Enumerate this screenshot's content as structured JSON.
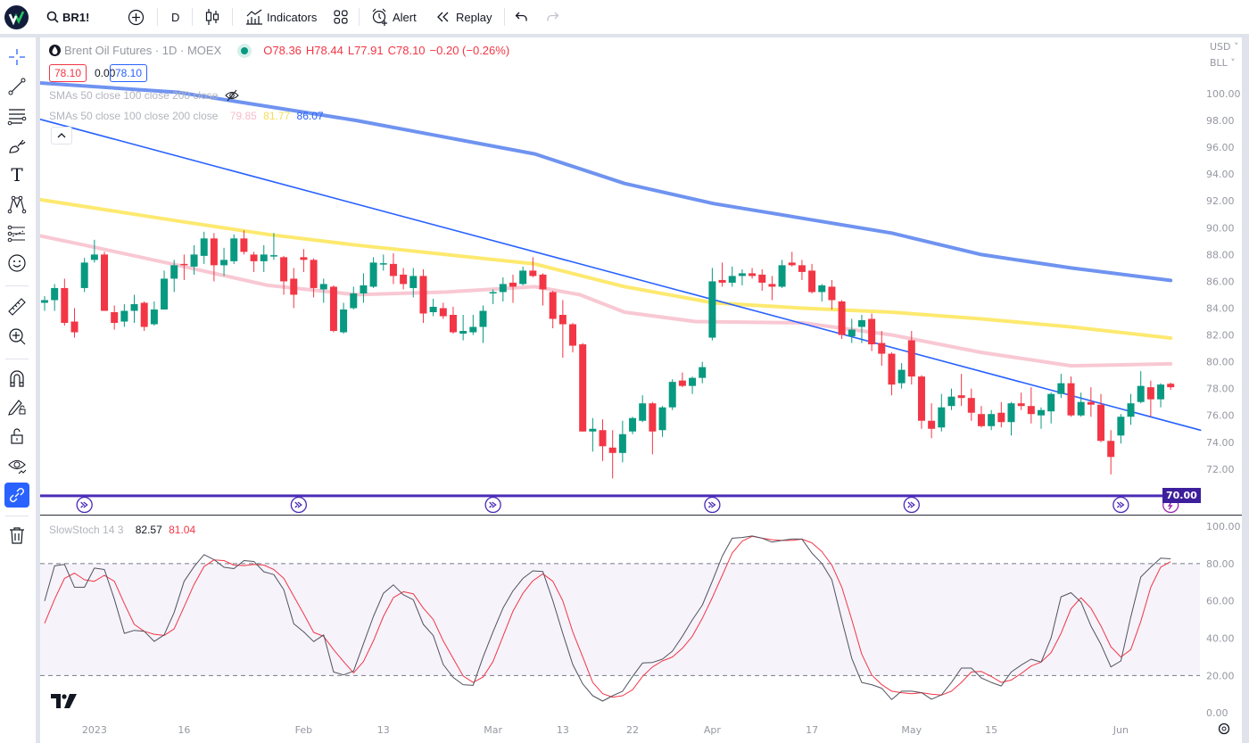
{
  "toolbar": {
    "symbol": "BR1!",
    "interval": "D",
    "indicators_label": "Indicators",
    "alert_label": "Alert",
    "replay_label": "Replay"
  },
  "legend": {
    "title": "Brent Oil Futures · 1D · MOEX",
    "open": "O78.36",
    "high": "H78.44",
    "low": "L77.91",
    "close": "C78.10",
    "change": "−0.20 (−0.26%)",
    "bid": "78.10",
    "spread": "0.00",
    "ask": "78.10",
    "sma_hidden_label": "SMAs 50 close 100 close 200 close",
    "sma_label": "SMAs 50 close 100 close 200 close",
    "sma50_value": "79.85",
    "sma100_value": "81.77",
    "sma200_value": "86.07",
    "stoch_label": "SlowStoch 14 3",
    "stoch_k_value": "82.57",
    "stoch_d_value": "81.04"
  },
  "price_scale": {
    "currency": "USD",
    "unit": "BLL",
    "highlight_label": "70.00"
  },
  "colors": {
    "up": "#089981",
    "down": "#f23645",
    "sma50": "#f8c8d3",
    "sma100": "#fde96f",
    "sma200": "#6f93f0",
    "trendline": "#2962ff",
    "stoch_k": "#50535e",
    "stoch_d": "#f23645",
    "event": "#4b2bb8",
    "accent": "#2962ff"
  },
  "chart_data": [
    {
      "type": "candlestick",
      "title": "Brent Oil Futures · 1D · MOEX",
      "ylim": [
        70,
        101.5
      ],
      "y_ticks": [
        "100.00",
        "98.00",
        "96.00",
        "94.00",
        "92.00",
        "90.00",
        "88.00",
        "86.00",
        "84.00",
        "82.00",
        "80.00",
        "78.00",
        "76.00",
        "74.00",
        "72.00"
      ],
      "x_ticks": [
        {
          "label": "2023",
          "bar": 6
        },
        {
          "label": "16",
          "bar": 15
        },
        {
          "label": "Feb",
          "bar": 27
        },
        {
          "label": "13",
          "bar": 35
        },
        {
          "label": "Mar",
          "bar": 46
        },
        {
          "label": "13",
          "bar": 53
        },
        {
          "label": "22",
          "bar": 60
        },
        {
          "label": "Apr",
          "bar": 68
        },
        {
          "label": "17",
          "bar": 78
        },
        {
          "label": "May",
          "bar": 88
        },
        {
          "label": "15",
          "bar": 96
        },
        {
          "label": "Jun",
          "bar": 109
        }
      ],
      "ohlc": [
        [
          84.4,
          84.9,
          83.8,
          84.6
        ],
        [
          84.6,
          85.8,
          83.8,
          85.5
        ],
        [
          85.5,
          86.2,
          82.7,
          82.9
        ],
        [
          83.0,
          84.0,
          81.8,
          82.2
        ],
        [
          85.5,
          87.75,
          85.2,
          87.4
        ],
        [
          87.6,
          89.1,
          87.4,
          88.0
        ],
        [
          88.0,
          88.2,
          83.8,
          83.8
        ],
        [
          83.7,
          84.2,
          82.4,
          82.9
        ],
        [
          83.0,
          84.3,
          82.6,
          83.8
        ],
        [
          83.8,
          85.0,
          82.9,
          84.3
        ],
        [
          84.4,
          84.5,
          82.3,
          82.6
        ],
        [
          82.8,
          84.5,
          82.7,
          83.9
        ],
        [
          83.9,
          86.8,
          83.9,
          86.2
        ],
        [
          86.2,
          87.6,
          85.2,
          87.2
        ],
        [
          87.3,
          88.0,
          86.1,
          87.2
        ],
        [
          87.1,
          88.7,
          86.5,
          88.0
        ],
        [
          87.9,
          89.7,
          87.3,
          89.2
        ],
        [
          89.2,
          89.6,
          86.0,
          87.2
        ],
        [
          87.2,
          88.5,
          86.4,
          87.6
        ],
        [
          87.5,
          89.5,
          87.3,
          89.2
        ],
        [
          89.2,
          89.8,
          88.0,
          88.2
        ],
        [
          88.0,
          88.2,
          86.7,
          87.5
        ],
        [
          87.5,
          88.7,
          86.7,
          88.0
        ],
        [
          87.85,
          89.6,
          87.6,
          87.95
        ],
        [
          87.8,
          87.9,
          85.0,
          86.0
        ],
        [
          86.2,
          87.0,
          84.0,
          85.0
        ],
        [
          87.8,
          88.4,
          86.7,
          87.6
        ],
        [
          87.6,
          87.7,
          84.8,
          85.5
        ],
        [
          85.4,
          86.2,
          84.4,
          85.8
        ],
        [
          85.6,
          85.7,
          82.2,
          82.3
        ],
        [
          82.2,
          84.4,
          82.1,
          83.9
        ],
        [
          84.0,
          85.6,
          83.9,
          85.1
        ],
        [
          85.1,
          86.6,
          84.4,
          85.7
        ],
        [
          85.6,
          87.8,
          85.5,
          87.4
        ],
        [
          87.25,
          88.0,
          86.8,
          87.35
        ],
        [
          87.3,
          88.1,
          85.8,
          86.4
        ],
        [
          86.5,
          87.0,
          85.4,
          85.8
        ],
        [
          85.5,
          87.0,
          84.8,
          86.4
        ],
        [
          86.4,
          86.9,
          82.9,
          83.6
        ],
        [
          83.7,
          84.7,
          83.4,
          84.1
        ],
        [
          84.0,
          84.4,
          83.2,
          83.4
        ],
        [
          83.5,
          84.1,
          82.1,
          82.2
        ],
        [
          82.1,
          83.5,
          81.6,
          82.3
        ],
        [
          82.2,
          83.5,
          82.0,
          82.6
        ],
        [
          82.6,
          84.2,
          81.4,
          83.8
        ],
        [
          85.1,
          85.4,
          84.3,
          85.2
        ],
        [
          85.2,
          86.3,
          84.5,
          85.8
        ],
        [
          85.9,
          86.5,
          84.4,
          85.6
        ],
        [
          85.8,
          87.1,
          85.7,
          86.8
        ],
        [
          86.8,
          87.8,
          86.3,
          86.4
        ],
        [
          86.5,
          86.6,
          84.2,
          85.4
        ],
        [
          85.2,
          85.3,
          82.5,
          83.2
        ],
        [
          83.5,
          84.6,
          80.3,
          82.8
        ],
        [
          82.8,
          82.9,
          80.7,
          81.2
        ],
        [
          81.3,
          81.4,
          74.8,
          74.8
        ],
        [
          74.8,
          75.8,
          73.3,
          75.0
        ],
        [
          74.9,
          75.7,
          72.6,
          73.7
        ],
        [
          73.6,
          74.9,
          71.3,
          73.2
        ],
        [
          73.2,
          75.6,
          72.5,
          74.6
        ],
        [
          74.8,
          75.9,
          74.6,
          75.8
        ],
        [
          75.6,
          77.5,
          75.5,
          76.9
        ],
        [
          76.9,
          77.0,
          73.1,
          74.8
        ],
        [
          74.9,
          76.7,
          74.4,
          76.6
        ],
        [
          76.6,
          78.7,
          76.4,
          78.5
        ],
        [
          78.6,
          79.2,
          78.1,
          78.2
        ],
        [
          78.2,
          78.9,
          77.6,
          78.8
        ],
        [
          78.8,
          80.0,
          78.4,
          79.6
        ],
        [
          81.8,
          87.0,
          81.6,
          86.0
        ],
        [
          86.1,
          87.4,
          85.6,
          85.9
        ],
        [
          85.9,
          87.1,
          85.6,
          86.4
        ],
        [
          86.4,
          86.9,
          85.7,
          86.6
        ],
        [
          86.6,
          87.0,
          86.2,
          86.4
        ],
        [
          86.5,
          86.9,
          85.3,
          85.9
        ],
        [
          85.8,
          86.4,
          84.6,
          85.6
        ],
        [
          85.6,
          87.6,
          85.5,
          87.2
        ],
        [
          87.4,
          88.2,
          87.1,
          87.2
        ],
        [
          87.2,
          87.6,
          86.1,
          86.7
        ],
        [
          86.8,
          87.3,
          85.1,
          85.2
        ],
        [
          85.2,
          85.8,
          84.5,
          85.7
        ],
        [
          85.6,
          86.1,
          83.9,
          84.6
        ],
        [
          84.5,
          84.6,
          81.7,
          82.0
        ],
        [
          81.9,
          83.2,
          81.4,
          82.4
        ],
        [
          82.6,
          83.5,
          81.4,
          83.1
        ],
        [
          83.2,
          83.6,
          80.8,
          81.3
        ],
        [
          81.4,
          82.3,
          79.7,
          80.6
        ],
        [
          80.6,
          80.7,
          77.5,
          78.3
        ],
        [
          78.4,
          79.9,
          78.0,
          79.4
        ],
        [
          81.6,
          82.3,
          78.3,
          78.9
        ],
        [
          78.9,
          79.0,
          75.0,
          75.6
        ],
        [
          75.6,
          76.9,
          74.3,
          75.0
        ],
        [
          75.1,
          77.6,
          74.8,
          76.6
        ],
        [
          76.7,
          78.0,
          76.4,
          77.4
        ],
        [
          77.5,
          79.1,
          76.7,
          77.3
        ],
        [
          77.3,
          78.0,
          75.6,
          76.2
        ],
        [
          76.1,
          76.7,
          75.1,
          75.2
        ],
        [
          75.2,
          76.4,
          74.9,
          76.1
        ],
        [
          76.2,
          77.0,
          75.1,
          75.5
        ],
        [
          75.5,
          77.0,
          74.5,
          76.9
        ],
        [
          76.9,
          77.7,
          76.4,
          76.7
        ],
        [
          76.7,
          78.1,
          75.4,
          76.1
        ],
        [
          76.0,
          76.6,
          75.0,
          76.4
        ],
        [
          76.3,
          77.7,
          75.4,
          77.6
        ],
        [
          77.6,
          79.1,
          77.3,
          78.4
        ],
        [
          78.4,
          78.9,
          75.9,
          76.0
        ],
        [
          76.0,
          77.7,
          75.9,
          77.0
        ],
        [
          77.0,
          78.1,
          75.9,
          76.8
        ],
        [
          76.8,
          77.6,
          74.0,
          74.1
        ],
        [
          74.1,
          74.9,
          71.6,
          72.9
        ],
        [
          74.5,
          76.1,
          73.9,
          75.9
        ],
        [
          75.9,
          77.6,
          75.3,
          76.9
        ],
        [
          77.0,
          79.3,
          76.9,
          78.2
        ],
        [
          78.1,
          78.6,
          75.9,
          77.2
        ],
        [
          77.2,
          78.4,
          76.6,
          78.3
        ],
        [
          78.36,
          78.44,
          77.91,
          78.1
        ]
      ],
      "sma200": [
        [
          0.5,
          100.8
        ],
        [
          14.4,
          100.1
        ],
        [
          32.3,
          98.0
        ],
        [
          50.2,
          95.5
        ],
        [
          59.2,
          93.3
        ],
        [
          68.1,
          91.8
        ],
        [
          77.1,
          90.7
        ],
        [
          86,
          89.6
        ],
        [
          95,
          88.0
        ],
        [
          104,
          87.0
        ],
        [
          114,
          86.07
        ]
      ],
      "sma100": [
        [
          0.5,
          92.1
        ],
        [
          14.4,
          90.5
        ],
        [
          23.4,
          89.5
        ],
        [
          32.3,
          88.7
        ],
        [
          41.3,
          88.0
        ],
        [
          50.2,
          87.3
        ],
        [
          59.2,
          85.6
        ],
        [
          68.1,
          84.4
        ],
        [
          77.1,
          84.0
        ],
        [
          86,
          83.7
        ],
        [
          95,
          83.2
        ],
        [
          104,
          82.6
        ],
        [
          114,
          81.77
        ]
      ],
      "sma50": [
        [
          0.5,
          89.4
        ],
        [
          5,
          88.7
        ],
        [
          14.4,
          87.2
        ],
        [
          23.4,
          85.7
        ],
        [
          32.3,
          85.0
        ],
        [
          41.3,
          85.2
        ],
        [
          50.2,
          85.6
        ],
        [
          54.7,
          85.0
        ],
        [
          59.2,
          83.7
        ],
        [
          66.3,
          83.0
        ],
        [
          77.1,
          82.9
        ],
        [
          86,
          82.0
        ],
        [
          95,
          80.7
        ],
        [
          104,
          79.7
        ],
        [
          114,
          79.85
        ]
      ],
      "trendline": [
        [
          0.5,
          98.1
        ],
        [
          117,
          74.9
        ]
      ],
      "horizontal_line": 70.0,
      "events": [
        {
          "bar": 5,
          "type": "dividend"
        },
        {
          "bar": 26.5,
          "type": "dividend"
        },
        {
          "bar": 46,
          "type": "dividend"
        },
        {
          "bar": 68,
          "type": "dividend"
        },
        {
          "bar": 88,
          "type": "dividend"
        },
        {
          "bar": 109,
          "type": "dividend"
        },
        {
          "bar": 114,
          "type": "lightning"
        }
      ]
    },
    {
      "type": "line",
      "title": "SlowStoch 14 3",
      "ylim": [
        0,
        100
      ],
      "y_ticks": [
        "100.00",
        "80.00",
        "60.00",
        "40.00",
        "20.00",
        "0.00"
      ],
      "bands": [
        20,
        80
      ],
      "series": [
        {
          "name": "%K",
          "values": [
            60,
            78.8,
            79.6,
            67.3,
            67.3,
            77.6,
            76.8,
            60.9,
            42.6,
            44.2,
            43.7,
            38.3,
            41.8,
            53.8,
            70.5,
            78.4,
            84.8,
            82.1,
            78.0,
            77.3,
            81.6,
            81.1,
            75.6,
            74.1,
            66.0,
            47.7,
            43.4,
            38.2,
            41.8,
            21.9,
            20.3,
            22.4,
            37.0,
            51.7,
            64.1,
            68.6,
            63.3,
            60.6,
            47.4,
            41.5,
            25.9,
            19.0,
            15.1,
            14.7,
            29.9,
            43.4,
            56.1,
            65.4,
            72.1,
            76.1,
            75.7,
            60.1,
            42.6,
            25.9,
            15.5,
            9.2,
            6.3,
            9.2,
            11.6,
            19.5,
            26.7,
            27.0,
            28.8,
            33.1,
            41.0,
            49.8,
            57.7,
            70.5,
            84.0,
            93.6,
            94.0,
            94.8,
            93.6,
            91.5,
            92.4,
            93.2,
            93.1,
            85.6,
            80.0,
            71.3,
            49.8,
            29.1,
            16.3,
            15.1,
            13.2,
            7.1,
            11.6,
            11.6,
            10.8,
            7.3,
            9.6,
            16.3,
            24.0,
            24.0,
            18.7,
            16.3,
            14.4,
            21.9,
            25.6,
            28.8,
            27.2,
            40.2,
            62.2,
            64.4,
            59.3,
            46.6,
            36.7,
            24.6,
            27.8,
            51.4,
            72.8,
            78.1,
            82.9,
            82.57
          ]
        },
        {
          "name": "%D",
          "values": [
            48,
            60.9,
            72.1,
            74.9,
            71.3,
            70.5,
            73.7,
            70.5,
            58.5,
            47.4,
            43.7,
            42.1,
            41.5,
            45.0,
            56.9,
            68.9,
            78.4,
            82.0,
            81.6,
            79.2,
            78.9,
            79.6,
            79.2,
            76.8,
            72.1,
            62.5,
            53.0,
            43.1,
            41.0,
            33.9,
            27.5,
            21.4,
            27.5,
            38.6,
            51.7,
            61.7,
            64.9,
            63.8,
            56.1,
            50.1,
            38.6,
            29.1,
            19.8,
            16.3,
            19.2,
            27.5,
            41.0,
            54.5,
            64.1,
            70.8,
            74.5,
            70.5,
            60.1,
            43.4,
            29.9,
            16.3,
            10.3,
            8.4,
            9.2,
            12.4,
            19.5,
            24.6,
            27.8,
            29.9,
            34.6,
            41.0,
            50.6,
            61.7,
            73.7,
            85.6,
            92.0,
            94.6,
            93.6,
            92.8,
            92.4,
            92.4,
            93.1,
            91.1,
            86.4,
            79.2,
            67.3,
            49.8,
            31.5,
            20.3,
            15.1,
            11.6,
            10.8,
            10.3,
            10.8,
            10.0,
            9.5,
            11.6,
            16.3,
            21.9,
            22.2,
            19.5,
            16.3,
            17.6,
            21.1,
            25.1,
            27.2,
            32.3,
            42.6,
            55.8,
            61.7,
            56.1,
            46.6,
            35.4,
            29.9,
            33.9,
            49.0,
            67.3,
            78.1,
            81.04
          ]
        }
      ]
    }
  ]
}
